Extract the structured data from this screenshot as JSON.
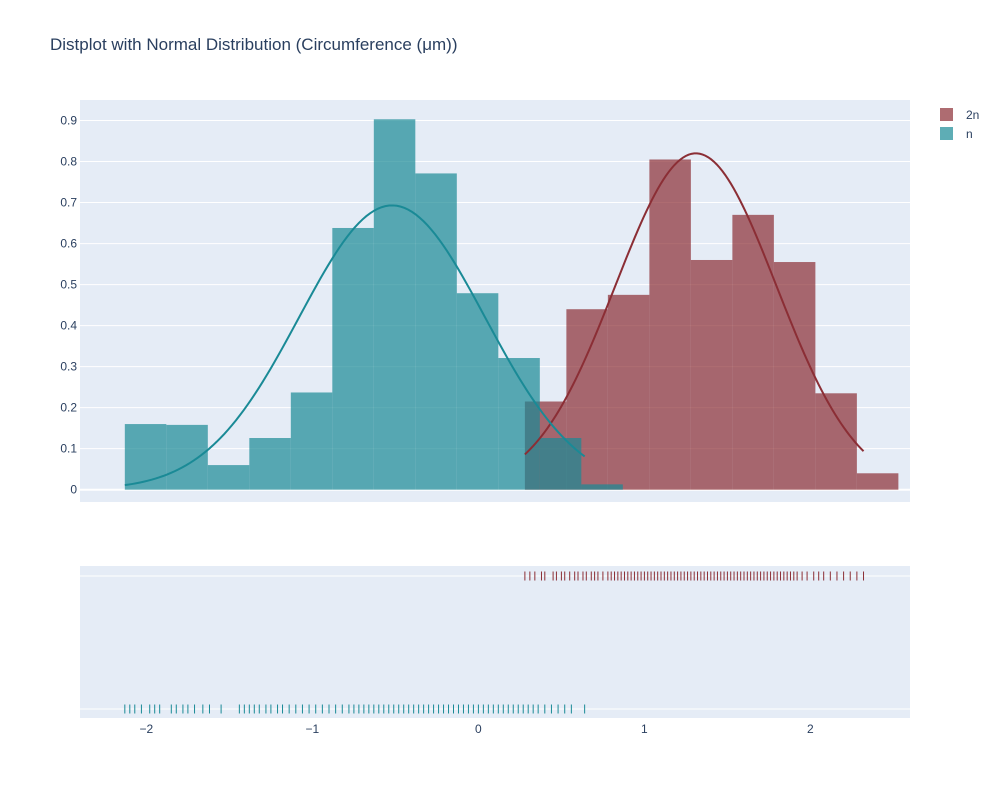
{
  "chart_data": {
    "type": "bar",
    "title": "Distplot with Normal Distribution (Circumference (μm))",
    "xlabel": "",
    "ylabel": "",
    "xlim": [
      -2.4,
      2.6
    ],
    "ylim": [
      -0.03,
      0.95
    ],
    "x_ticks": [
      -2,
      -1,
      0,
      1,
      2
    ],
    "x_tick_labels": [
      "−2",
      "−1",
      "0",
      "1",
      "2"
    ],
    "y_ticks": [
      0,
      0.1,
      0.2,
      0.3,
      0.4,
      0.5,
      0.6,
      0.7,
      0.8,
      0.9
    ],
    "y_tick_labels": [
      "0",
      "0.1",
      "0.2",
      "0.3",
      "0.4",
      "0.5",
      "0.6",
      "0.7",
      "0.8",
      "0.9"
    ],
    "grid": true,
    "legend_position": "top-right",
    "colors": {
      "2n": "#8b2e35",
      "n": "#1a8a96",
      "plot_bg": "#e5ecf6"
    },
    "series": [
      {
        "name": "2n",
        "bins": [
          {
            "x0": 0.28,
            "x1": 0.53,
            "y": 0.215
          },
          {
            "x0": 0.53,
            "x1": 0.78,
            "y": 0.44
          },
          {
            "x0": 0.78,
            "x1": 1.03,
            "y": 0.475
          },
          {
            "x0": 1.03,
            "x1": 1.28,
            "y": 0.805
          },
          {
            "x0": 1.28,
            "x1": 1.53,
            "y": 0.56
          },
          {
            "x0": 1.53,
            "x1": 1.78,
            "y": 0.67
          },
          {
            "x0": 1.78,
            "x1": 2.03,
            "y": 0.555
          },
          {
            "x0": 2.03,
            "x1": 2.28,
            "y": 0.235
          },
          {
            "x0": 2.28,
            "x1": 2.53,
            "y": 0.04
          }
        ],
        "normal_curve": {
          "mean": 1.31,
          "sd": 0.485,
          "peak": 0.82,
          "x_from": 0.28,
          "x_to": 2.32
        },
        "rug_x": [
          0.28,
          0.31,
          0.34,
          0.38,
          0.4,
          0.45,
          0.47,
          0.5,
          0.52,
          0.55,
          0.58,
          0.6,
          0.63,
          0.65,
          0.68,
          0.7,
          0.72,
          0.75,
          0.78,
          0.8,
          0.82,
          0.84,
          0.86,
          0.88,
          0.9,
          0.92,
          0.94,
          0.96,
          0.98,
          1.0,
          1.02,
          1.04,
          1.06,
          1.08,
          1.1,
          1.12,
          1.14,
          1.16,
          1.18,
          1.2,
          1.22,
          1.24,
          1.26,
          1.28,
          1.3,
          1.32,
          1.34,
          1.36,
          1.38,
          1.4,
          1.42,
          1.44,
          1.46,
          1.48,
          1.5,
          1.52,
          1.54,
          1.56,
          1.58,
          1.6,
          1.62,
          1.64,
          1.66,
          1.68,
          1.7,
          1.72,
          1.74,
          1.76,
          1.78,
          1.8,
          1.82,
          1.84,
          1.86,
          1.88,
          1.9,
          1.92,
          1.95,
          1.98,
          2.02,
          2.05,
          2.08,
          2.12,
          2.16,
          2.2,
          2.24,
          2.28,
          2.32
        ]
      },
      {
        "name": "n",
        "bins": [
          {
            "x0": -2.13,
            "x1": -1.88,
            "y": 0.16
          },
          {
            "x0": -1.88,
            "x1": -1.63,
            "y": 0.158
          },
          {
            "x0": -1.63,
            "x1": -1.38,
            "y": 0.06
          },
          {
            "x0": -1.38,
            "x1": -1.13,
            "y": 0.126
          },
          {
            "x0": -1.13,
            "x1": -0.88,
            "y": 0.237
          },
          {
            "x0": -0.88,
            "x1": -0.63,
            "y": 0.638
          },
          {
            "x0": -0.63,
            "x1": -0.38,
            "y": 0.903
          },
          {
            "x0": -0.38,
            "x1": -0.13,
            "y": 0.771
          },
          {
            "x0": -0.13,
            "x1": 0.12,
            "y": 0.479
          },
          {
            "x0": 0.12,
            "x1": 0.37,
            "y": 0.321
          },
          {
            "x0": 0.37,
            "x1": 0.62,
            "y": 0.126
          },
          {
            "x0": 0.62,
            "x1": 0.87,
            "y": 0.013
          }
        ],
        "normal_curve": {
          "mean": -0.52,
          "sd": 0.56,
          "peak": 0.693,
          "x_from": -2.13,
          "x_to": 0.64
        },
        "rug_x": [
          -2.13,
          -2.1,
          -2.07,
          -2.03,
          -1.98,
          -1.95,
          -1.92,
          -1.85,
          -1.82,
          -1.78,
          -1.75,
          -1.71,
          -1.66,
          -1.62,
          -1.55,
          -1.44,
          -1.41,
          -1.38,
          -1.35,
          -1.32,
          -1.28,
          -1.25,
          -1.21,
          -1.18,
          -1.14,
          -1.1,
          -1.06,
          -1.02,
          -0.98,
          -0.94,
          -0.9,
          -0.86,
          -0.82,
          -0.78,
          -0.75,
          -0.72,
          -0.69,
          -0.66,
          -0.63,
          -0.6,
          -0.57,
          -0.54,
          -0.51,
          -0.48,
          -0.45,
          -0.42,
          -0.39,
          -0.36,
          -0.33,
          -0.3,
          -0.27,
          -0.24,
          -0.21,
          -0.18,
          -0.15,
          -0.12,
          -0.09,
          -0.06,
          -0.03,
          0.0,
          0.03,
          0.06,
          0.09,
          0.12,
          0.15,
          0.18,
          0.21,
          0.24,
          0.27,
          0.3,
          0.33,
          0.36,
          0.4,
          0.44,
          0.48,
          0.52,
          0.56,
          0.64
        ]
      }
    ]
  }
}
